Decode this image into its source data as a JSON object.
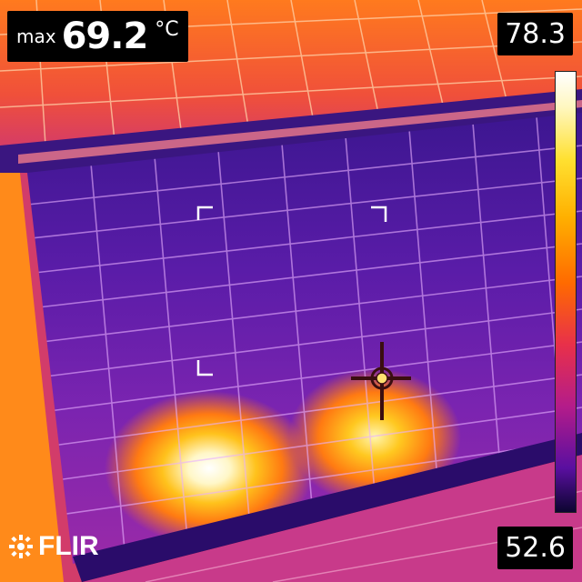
{
  "spot_meter": {
    "label": "max",
    "value": "69.2",
    "unit": "°C"
  },
  "scale": {
    "max": "78.3",
    "min": "52.6",
    "palette": "ironbow"
  },
  "brand": {
    "logo": "FLIR"
  },
  "colors": {
    "cold": "#2a0e70",
    "mid": "#c83288",
    "warm": "#ff7a1a",
    "hot": "#fff6c8"
  }
}
